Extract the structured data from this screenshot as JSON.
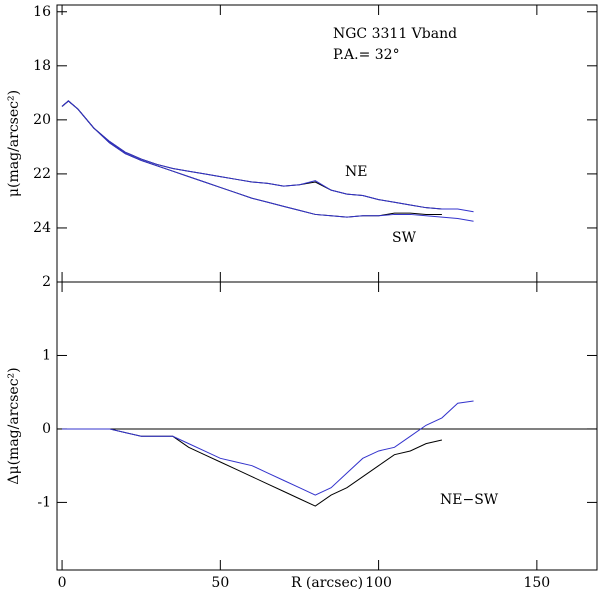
{
  "chart_data": [
    {
      "type": "line",
      "title": "NGC 3311 Vband",
      "subtitle": "P.A.= 32°",
      "y_label": "μ(mag/arcsec²)",
      "x": [
        0,
        2,
        5,
        10,
        15,
        20,
        25,
        30,
        35,
        40,
        45,
        50,
        55,
        60,
        65,
        70,
        75,
        80,
        85,
        90,
        95,
        100,
        105,
        110,
        115,
        120,
        125,
        130
      ],
      "series": [
        {
          "name": "NE",
          "color": "#000000",
          "values": [
            19.5,
            19.3,
            19.6,
            20.3,
            20.8,
            21.2,
            21.45,
            21.65,
            21.8,
            21.9,
            22.0,
            22.1,
            22.2,
            22.3,
            22.35,
            22.45,
            22.4,
            22.3,
            22.6,
            22.75,
            22.8,
            22.95,
            23.05,
            23.15,
            23.25,
            23.3,
            null,
            null
          ]
        },
        {
          "color": "#3333cc",
          "values": [
            19.5,
            19.3,
            19.6,
            20.3,
            20.8,
            21.2,
            21.45,
            21.65,
            21.8,
            21.9,
            22.0,
            22.1,
            22.2,
            22.3,
            22.35,
            22.45,
            22.4,
            22.25,
            22.6,
            22.75,
            22.8,
            22.95,
            23.05,
            23.15,
            23.25,
            23.3,
            23.3,
            23.4
          ]
        },
        {
          "name": "SW",
          "color": "#000000",
          "values": [
            19.5,
            19.3,
            19.6,
            20.3,
            20.85,
            21.25,
            21.5,
            21.7,
            21.9,
            22.1,
            22.3,
            22.5,
            22.7,
            22.9,
            23.05,
            23.2,
            23.35,
            23.5,
            23.55,
            23.6,
            23.55,
            23.55,
            23.45,
            23.45,
            23.5,
            23.5,
            null,
            null
          ]
        },
        {
          "color": "#3333cc",
          "values": [
            19.5,
            19.3,
            19.6,
            20.3,
            20.85,
            21.25,
            21.5,
            21.7,
            21.9,
            22.1,
            22.3,
            22.5,
            22.7,
            22.9,
            23.05,
            23.2,
            23.35,
            23.5,
            23.55,
            23.6,
            23.55,
            23.55,
            23.5,
            23.5,
            23.55,
            23.6,
            23.65,
            23.75
          ]
        }
      ],
      "xlim": [
        -1.6,
        169
      ],
      "xticks": [
        0,
        50,
        100,
        150
      ],
      "ylim": [
        26,
        15.75
      ],
      "yticks": [
        16,
        18,
        20,
        22,
        24
      ]
    },
    {
      "type": "line",
      "x_label": "R (arcsec)",
      "y_label": "Δμ(mag/arcsec²)",
      "annotation": "NE−SW",
      "x": [
        0,
        5,
        10,
        15,
        20,
        25,
        30,
        35,
        40,
        45,
        50,
        55,
        60,
        65,
        70,
        75,
        80,
        85,
        90,
        95,
        100,
        105,
        110,
        115,
        120,
        125,
        130
      ],
      "series": [
        {
          "color": "#000000",
          "values": [
            0,
            0,
            0,
            0,
            -0.05,
            -0.1,
            -0.1,
            -0.1,
            -0.25,
            -0.35,
            -0.45,
            -0.55,
            -0.65,
            -0.75,
            -0.85,
            -0.95,
            -1.05,
            -0.9,
            -0.8,
            -0.65,
            -0.5,
            -0.35,
            -0.3,
            -0.2,
            -0.15,
            null,
            null
          ]
        },
        {
          "color": "#3333cc",
          "values": [
            0,
            0,
            0,
            0,
            -0.05,
            -0.1,
            -0.1,
            -0.1,
            -0.2,
            -0.3,
            -0.4,
            -0.45,
            -0.5,
            -0.6,
            -0.7,
            -0.8,
            -0.9,
            -0.8,
            -0.6,
            -0.4,
            -0.3,
            -0.25,
            -0.1,
            0.05,
            0.15,
            0.35,
            0.38
          ]
        }
      ],
      "hline": 0,
      "xlim": [
        -1.6,
        169
      ],
      "xticks": [
        0,
        50,
        100,
        150
      ],
      "ylim": [
        -1.92,
        2
      ],
      "yticks": [
        -1,
        0,
        1,
        2
      ]
    }
  ]
}
